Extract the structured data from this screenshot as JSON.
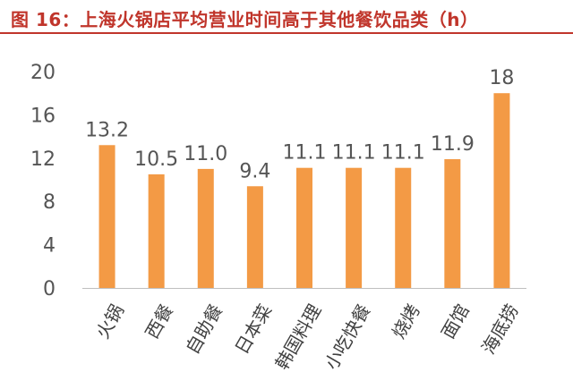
{
  "chart_data": {
    "type": "bar",
    "title": "图 16：上海火锅店平均营业时间高于其他餐饮品类（h）",
    "xlabel": "",
    "ylabel": "",
    "categories": [
      "火锅",
      "西餐",
      "自助餐",
      "日本菜",
      "韩国料理",
      "小吃快餐",
      "烧烤",
      "面馆",
      "海底捞"
    ],
    "values": [
      13.2,
      10.5,
      11.0,
      9.4,
      11.1,
      11.1,
      11.1,
      11.9,
      18
    ],
    "data_labels": [
      "13.2",
      "10.5",
      "11.0",
      "9.4",
      "11.1",
      "11.1",
      "11.1",
      "11.9",
      "18"
    ],
    "yticks": [
      0,
      4,
      8,
      12,
      16,
      20
    ],
    "ylim": [
      0,
      20
    ],
    "grid": false,
    "legend": "none",
    "bar_color": "#f39a45",
    "title_color": "#c0352b"
  }
}
